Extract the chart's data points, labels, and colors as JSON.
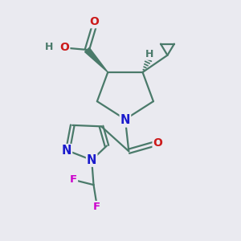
{
  "bg_color": "#eaeaf0",
  "bond_color": "#4a7a6a",
  "bond_width": 1.6,
  "atom_colors": {
    "N": "#1a1acc",
    "O": "#cc1a1a",
    "F": "#cc00cc",
    "C": "#4a7a6a",
    "H": "#4a7a6a"
  },
  "font_size": 8.5
}
